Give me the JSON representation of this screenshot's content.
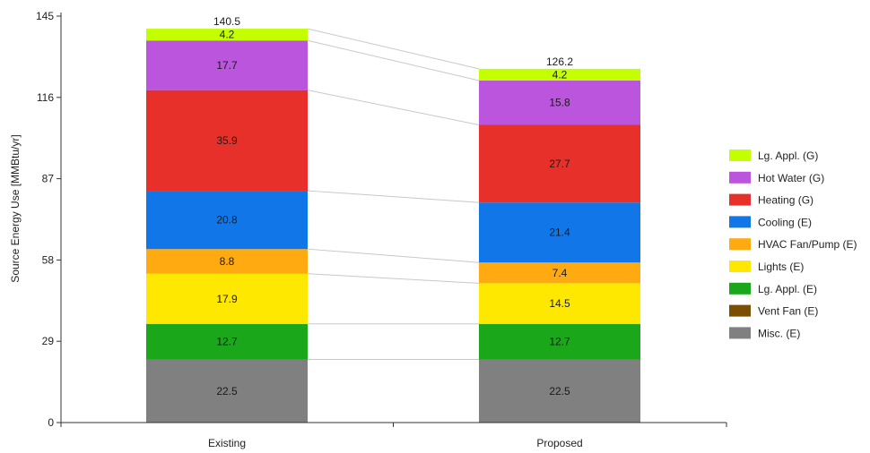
{
  "chart_data": {
    "type": "bar",
    "stacked": true,
    "categories": [
      "Existing",
      "Proposed"
    ],
    "ylabel": "Source Energy Use [MMBtu/yr]",
    "ylim": [
      0,
      145
    ],
    "yticks": [
      "0",
      "29",
      "58",
      "87",
      "116",
      "145"
    ],
    "totals": [
      "140.5",
      "126.2"
    ],
    "legend_position": "right",
    "series": [
      {
        "name": "Misc. (E)",
        "color": "#808080",
        "values": [
          22.5,
          22.5
        ],
        "labels": [
          "22.5",
          "22.5"
        ]
      },
      {
        "name": "Vent Fan (E)",
        "color": "#7a5000",
        "values": [
          0,
          0
        ],
        "labels": [
          "",
          ""
        ]
      },
      {
        "name": "Lg. Appl. (E)",
        "color": "#1aa81a",
        "values": [
          12.7,
          12.7
        ],
        "labels": [
          "12.7",
          "12.7"
        ]
      },
      {
        "name": "Lights (E)",
        "color": "#ffe800",
        "values": [
          17.9,
          14.5
        ],
        "labels": [
          "17.9",
          "14.5"
        ]
      },
      {
        "name": "HVAC Fan/Pump (E)",
        "color": "#ffaa10",
        "values": [
          8.8,
          7.4
        ],
        "labels": [
          "8.8",
          "7.4"
        ]
      },
      {
        "name": "Cooling (E)",
        "color": "#1177e8",
        "values": [
          20.8,
          21.4
        ],
        "labels": [
          "20.8",
          "21.4"
        ]
      },
      {
        "name": "Heating (G)",
        "color": "#e8302a",
        "values": [
          35.9,
          27.7
        ],
        "labels": [
          "35.9",
          "27.7"
        ]
      },
      {
        "name": "Hot Water (G)",
        "color": "#bb55dd",
        "values": [
          17.7,
          15.8
        ],
        "labels": [
          "17.7",
          "15.8"
        ]
      },
      {
        "name": "Lg. Appl. (G)",
        "color": "#c4ff00",
        "values": [
          4.2,
          4.2
        ],
        "labels": [
          "4.2",
          "4.2"
        ]
      }
    ]
  }
}
